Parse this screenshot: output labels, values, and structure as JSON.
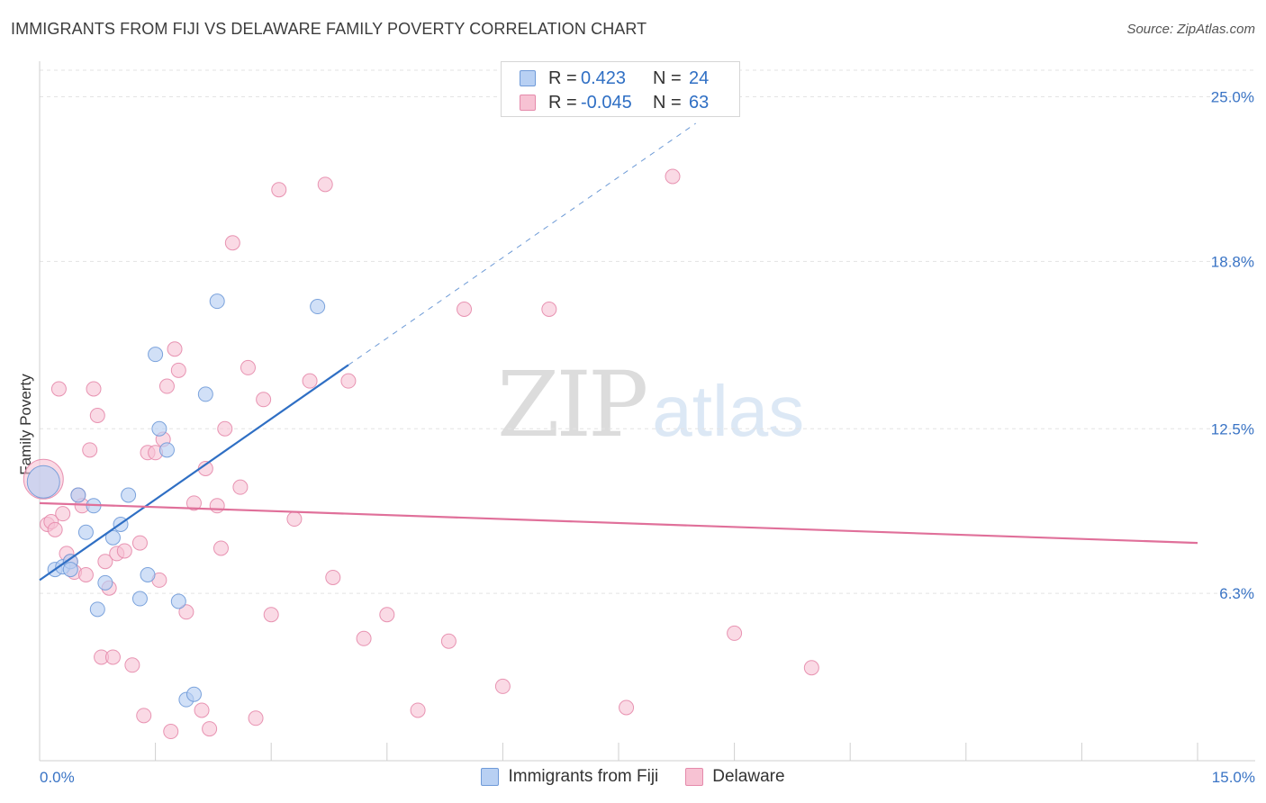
{
  "title": "IMMIGRANTS FROM FIJI VS DELAWARE FAMILY POVERTY CORRELATION CHART",
  "source": "Source: ZipAtlas.com",
  "watermark": {
    "part1": "ZIP",
    "part2": "atlas"
  },
  "colors": {
    "fiji_fill": "#b8d0f3",
    "fiji_stroke": "#6f9ad8",
    "fiji_line": "#2f6fc4",
    "delaware_fill": "#f7c2d3",
    "delaware_stroke": "#e58aab",
    "delaware_line": "#e0709a",
    "grid": "#e3e3e3",
    "tick_label": "#3a74c5"
  },
  "legend": {
    "fiji": {
      "r_label": "R =",
      "r_value": "0.423",
      "n_label": "N =",
      "n_value": "24"
    },
    "delaware": {
      "r_label": "R =",
      "r_value": "-0.045",
      "n_label": "N =",
      "n_value": "63"
    }
  },
  "chart_data": {
    "type": "scatter",
    "title": "IMMIGRANTS FROM FIJI VS DELAWARE FAMILY POVERTY CORRELATION CHART",
    "xlabel": "",
    "ylabel": "Family Poverty",
    "xlim": [
      0,
      15
    ],
    "ylim": [
      0,
      26
    ],
    "x_tick_labels": [
      "0.0%",
      "15.0%"
    ],
    "x_tick_values": [
      0,
      15
    ],
    "x_minor_ticks": [
      1.5,
      3.0,
      4.5,
      6.0,
      7.5,
      9.0,
      10.5,
      12.0,
      13.5,
      15.0
    ],
    "y_tick_labels": [
      "6.3%",
      "12.5%",
      "18.8%",
      "25.0%"
    ],
    "y_tick_values": [
      6.3,
      12.5,
      18.8,
      25.0
    ],
    "grid": true,
    "legend_position": "bottom-center",
    "series": [
      {
        "name": "Immigrants from Fiji",
        "x": [
          0.05,
          0.2,
          0.3,
          0.4,
          0.5,
          0.6,
          0.7,
          0.75,
          0.85,
          0.95,
          1.05,
          1.15,
          1.3,
          1.4,
          1.5,
          1.55,
          1.65,
          1.8,
          1.9,
          2.0,
          2.15,
          2.3,
          3.6,
          0.4
        ],
        "y": [
          10.5,
          7.2,
          7.3,
          7.5,
          10.0,
          8.6,
          9.6,
          5.7,
          6.7,
          8.4,
          8.9,
          10.0,
          6.1,
          7.0,
          15.3,
          12.5,
          11.7,
          6.0,
          2.3,
          2.5,
          13.8,
          17.3,
          17.1,
          7.2
        ],
        "trend": {
          "x": [
            0.0,
            4.0
          ],
          "y": [
            6.8,
            14.9
          ],
          "extension": {
            "x": [
              4.0,
              8.5
            ],
            "y": [
              14.9,
              24.0
            ]
          }
        }
      },
      {
        "name": "Delaware",
        "x": [
          0.05,
          0.1,
          0.15,
          0.2,
          0.25,
          0.3,
          0.35,
          0.4,
          0.45,
          0.5,
          0.55,
          0.6,
          0.65,
          0.7,
          0.75,
          0.8,
          0.85,
          0.9,
          0.95,
          1.0,
          1.1,
          1.2,
          1.3,
          1.35,
          1.4,
          1.5,
          1.55,
          1.6,
          1.65,
          1.7,
          1.75,
          1.8,
          1.9,
          2.0,
          2.1,
          2.15,
          2.2,
          2.3,
          2.35,
          2.4,
          2.5,
          2.6,
          2.7,
          2.8,
          2.9,
          3.0,
          3.1,
          3.3,
          3.5,
          3.7,
          3.8,
          4.0,
          4.2,
          4.5,
          4.9,
          5.3,
          5.5,
          6.0,
          6.6,
          7.6,
          8.2,
          9.0,
          10.0
        ],
        "y": [
          10.6,
          8.9,
          9.0,
          8.7,
          14.0,
          9.3,
          7.8,
          7.5,
          7.1,
          10.0,
          9.6,
          7.0,
          11.7,
          14.0,
          13.0,
          3.9,
          7.5,
          6.5,
          3.9,
          7.8,
          7.9,
          3.6,
          8.2,
          1.7,
          11.6,
          11.6,
          6.8,
          12.1,
          14.1,
          1.1,
          15.5,
          14.7,
          5.6,
          9.7,
          1.9,
          11.0,
          1.2,
          9.6,
          8.0,
          12.5,
          19.5,
          10.3,
          14.8,
          1.6,
          13.6,
          5.5,
          21.5,
          9.1,
          14.3,
          21.7,
          6.9,
          14.3,
          4.6,
          5.5,
          1.9,
          4.5,
          17.0,
          2.8,
          17.0,
          2.0,
          22.0,
          4.8,
          3.5
        ],
        "trend": {
          "x": [
            0.0,
            15.0
          ],
          "y": [
            9.7,
            8.2
          ]
        }
      }
    ]
  }
}
